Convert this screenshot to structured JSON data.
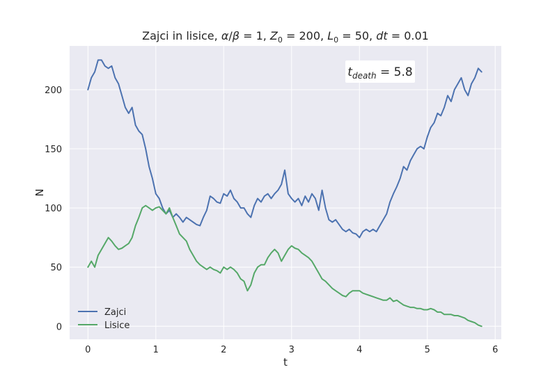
{
  "chart_data": {
    "type": "line",
    "title": {
      "prefix": "Zajci in lisice, ",
      "ratio_a": "α",
      "ratio_slash": "/",
      "ratio_b": "β",
      "ratio_eq": " = 1, ",
      "z0_var": "Z",
      "z0_sub": "0",
      "z0_eq": " = 200, ",
      "l0_var": "L",
      "l0_sub": "0",
      "l0_eq": " = 50, ",
      "dt_var": "dt",
      "dt_eq": " = 0.01"
    },
    "xlabel": "t",
    "ylabel": "N",
    "xlim": [
      -0.27,
      6.09
    ],
    "ylim": [
      -11,
      237
    ],
    "xticks": [
      0,
      1,
      2,
      3,
      4,
      5,
      6
    ],
    "yticks": [
      0,
      50,
      100,
      150,
      200
    ],
    "grid": true,
    "legend_location": "lower-left",
    "annotation": {
      "var": "t",
      "sub": "death",
      "eq": " = 5.8"
    },
    "colors": {
      "background": "#eaeaf2",
      "grid": "#ffffff",
      "zajci": "#4c72b0",
      "lisice": "#55a868"
    },
    "series": [
      {
        "name": "Zajci",
        "x": [
          0.0,
          0.05,
          0.1,
          0.15,
          0.2,
          0.25,
          0.3,
          0.35,
          0.4,
          0.45,
          0.5,
          0.55,
          0.6,
          0.65,
          0.7,
          0.75,
          0.8,
          0.85,
          0.9,
          0.95,
          1.0,
          1.05,
          1.1,
          1.15,
          1.2,
          1.25,
          1.3,
          1.35,
          1.4,
          1.45,
          1.5,
          1.55,
          1.6,
          1.65,
          1.7,
          1.75,
          1.8,
          1.85,
          1.9,
          1.95,
          2.0,
          2.05,
          2.1,
          2.15,
          2.2,
          2.25,
          2.3,
          2.35,
          2.4,
          2.45,
          2.5,
          2.55,
          2.6,
          2.65,
          2.7,
          2.75,
          2.8,
          2.85,
          2.9,
          2.95,
          3.0,
          3.05,
          3.1,
          3.15,
          3.2,
          3.25,
          3.3,
          3.35,
          3.4,
          3.45,
          3.5,
          3.55,
          3.6,
          3.65,
          3.7,
          3.75,
          3.8,
          3.85,
          3.9,
          3.95,
          4.0,
          4.05,
          4.1,
          4.15,
          4.2,
          4.25,
          4.3,
          4.35,
          4.4,
          4.45,
          4.5,
          4.55,
          4.6,
          4.65,
          4.7,
          4.75,
          4.8,
          4.85,
          4.9,
          4.95,
          5.0,
          5.05,
          5.1,
          5.15,
          5.2,
          5.25,
          5.3,
          5.35,
          5.4,
          5.45,
          5.5,
          5.55,
          5.6,
          5.65,
          5.7,
          5.75,
          5.8
        ],
        "y": [
          200,
          210,
          215,
          225,
          225,
          220,
          218,
          220,
          210,
          205,
          195,
          185,
          180,
          185,
          170,
          165,
          162,
          150,
          135,
          125,
          112,
          108,
          100,
          95,
          98,
          92,
          95,
          92,
          88,
          92,
          90,
          88,
          86,
          85,
          92,
          98,
          110,
          108,
          105,
          104,
          112,
          110,
          115,
          108,
          105,
          100,
          100,
          95,
          92,
          102,
          108,
          105,
          110,
          112,
          108,
          112,
          115,
          120,
          132,
          112,
          108,
          105,
          108,
          102,
          110,
          105,
          112,
          108,
          98,
          115,
          100,
          90,
          88,
          90,
          86,
          82,
          80,
          82,
          79,
          78,
          75,
          80,
          82,
          80,
          82,
          80,
          85,
          90,
          95,
          105,
          112,
          118,
          125,
          135,
          132,
          140,
          145,
          150,
          152,
          150,
          160,
          168,
          172,
          180,
          178,
          185,
          195,
          190,
          200,
          205,
          210,
          200,
          195,
          205,
          210,
          218,
          215
        ]
      },
      {
        "name": "Lisice",
        "x": [
          0.0,
          0.05,
          0.1,
          0.15,
          0.2,
          0.25,
          0.3,
          0.35,
          0.4,
          0.45,
          0.5,
          0.55,
          0.6,
          0.65,
          0.7,
          0.75,
          0.8,
          0.85,
          0.9,
          0.95,
          1.0,
          1.05,
          1.1,
          1.15,
          1.2,
          1.25,
          1.3,
          1.35,
          1.4,
          1.45,
          1.5,
          1.55,
          1.6,
          1.65,
          1.7,
          1.75,
          1.8,
          1.85,
          1.9,
          1.95,
          2.0,
          2.05,
          2.1,
          2.15,
          2.2,
          2.25,
          2.3,
          2.35,
          2.4,
          2.45,
          2.5,
          2.55,
          2.6,
          2.65,
          2.7,
          2.75,
          2.8,
          2.85,
          2.9,
          2.95,
          3.0,
          3.05,
          3.1,
          3.15,
          3.2,
          3.25,
          3.3,
          3.35,
          3.4,
          3.45,
          3.5,
          3.55,
          3.6,
          3.65,
          3.7,
          3.75,
          3.8,
          3.85,
          3.9,
          3.95,
          4.0,
          4.05,
          4.1,
          4.15,
          4.2,
          4.25,
          4.3,
          4.35,
          4.4,
          4.45,
          4.5,
          4.55,
          4.6,
          4.65,
          4.7,
          4.75,
          4.8,
          4.85,
          4.9,
          4.95,
          5.0,
          5.05,
          5.1,
          5.15,
          5.2,
          5.25,
          5.3,
          5.35,
          5.4,
          5.45,
          5.5,
          5.55,
          5.6,
          5.65,
          5.7,
          5.75,
          5.8
        ],
        "y": [
          50,
          55,
          50,
          60,
          65,
          70,
          75,
          72,
          68,
          65,
          66,
          68,
          70,
          75,
          85,
          92,
          100,
          102,
          100,
          98,
          100,
          101,
          98,
          95,
          100,
          92,
          85,
          78,
          75,
          72,
          65,
          60,
          55,
          52,
          50,
          48,
          50,
          48,
          47,
          45,
          50,
          48,
          50,
          48,
          45,
          40,
          38,
          30,
          35,
          45,
          50,
          52,
          52,
          58,
          62,
          65,
          62,
          55,
          60,
          65,
          68,
          66,
          65,
          62,
          60,
          58,
          55,
          50,
          45,
          40,
          38,
          35,
          32,
          30,
          28,
          26,
          25,
          28,
          30,
          30,
          30,
          28,
          27,
          26,
          25,
          24,
          23,
          22,
          22,
          24,
          21,
          22,
          20,
          18,
          17,
          16,
          16,
          15,
          15,
          14,
          14,
          15,
          14,
          12,
          12,
          10,
          10,
          10,
          9,
          9,
          8,
          7,
          5,
          4,
          3,
          1,
          0
        ]
      }
    ]
  }
}
